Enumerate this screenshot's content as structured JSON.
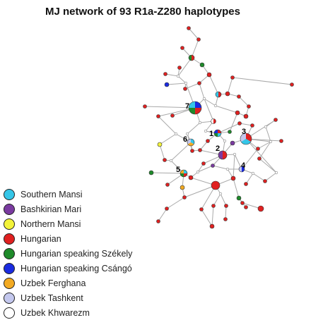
{
  "title": "MJ network of 93 R1a-Z280  haplotypes",
  "colors": {
    "southern_mansi": "#35c6e8",
    "bashkirian_mari": "#7a3aa0",
    "northern_mansi": "#f3f33a",
    "hungarian": "#e02020",
    "szekely": "#1e8a2a",
    "csango": "#1a2be0",
    "uzbek_ferghana": "#f2aa22",
    "uzbek_tashkent": "#c4c8ee",
    "uzbek_khwarezm": "#ffffff",
    "edge": "#a9a9a9",
    "median": "#ffffff"
  },
  "legend": [
    {
      "label": "Southern Mansi",
      "color": "#35c6e8"
    },
    {
      "label": "Bashkirian Mari",
      "color": "#7a3aa0"
    },
    {
      "label": "Northern Mansi",
      "color": "#f3f33a"
    },
    {
      "label": "Hungarian",
      "color": "#e02020"
    },
    {
      "label": "Hungarian speaking Székely",
      "color": "#1e8a2a"
    },
    {
      "label": "Hungarian speaking Csángó",
      "color": "#1a2be0"
    },
    {
      "label": "Uzbek Ferghana",
      "color": "#f2aa22"
    },
    {
      "label": "Uzbek Tashkent",
      "color": "#c4c8ee"
    },
    {
      "label": "Uzbek Khwarezm",
      "color": "#ffffff"
    }
  ],
  "node_labels": [
    "1",
    "2",
    "3",
    "4",
    "5",
    "6",
    "7"
  ]
}
